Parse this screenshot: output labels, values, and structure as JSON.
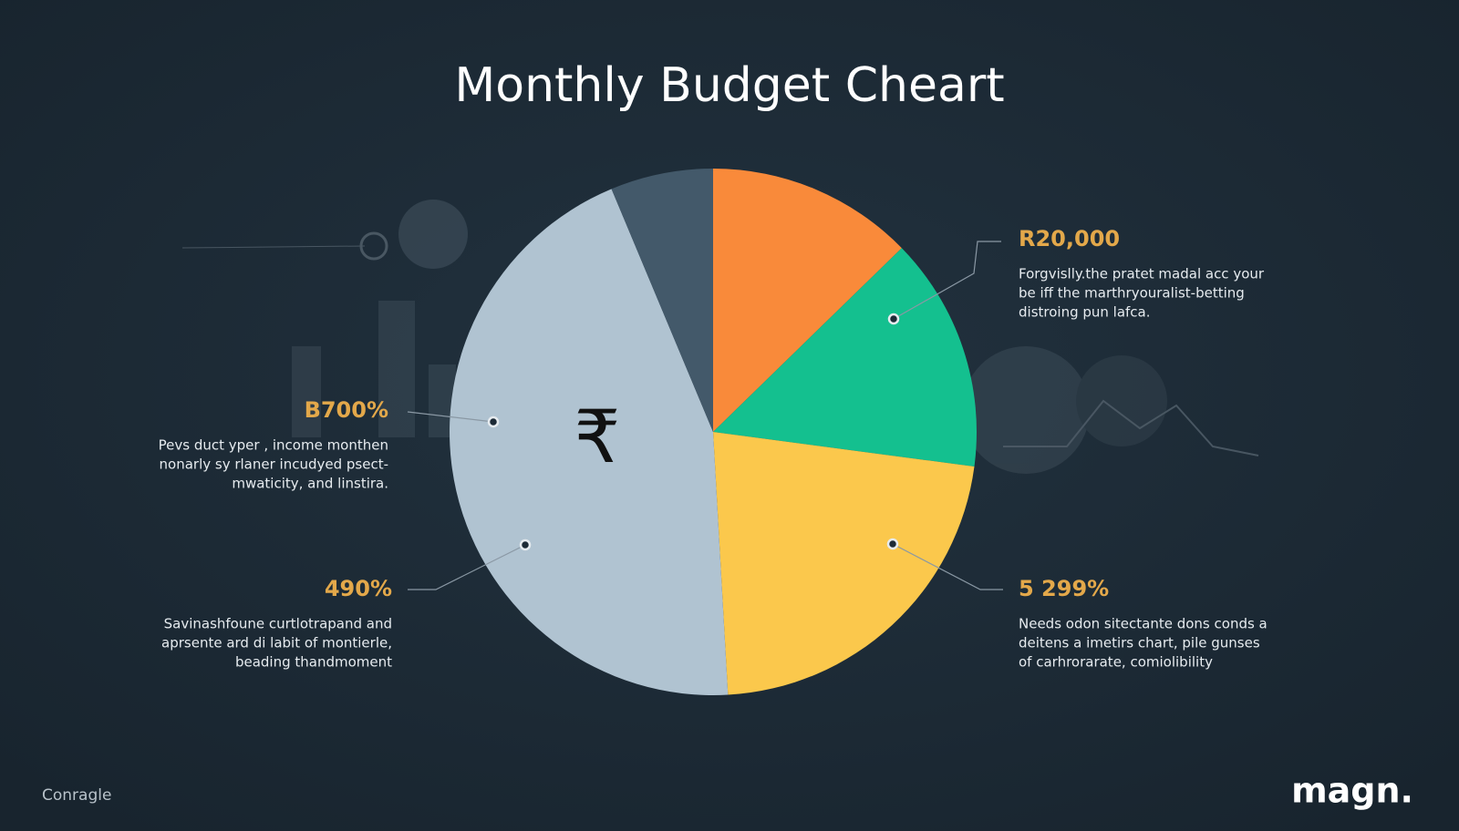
{
  "chart_data": {
    "type": "pie",
    "title": "Monthly Budget Cheart",
    "values": [
      12.7,
      14.4,
      22.0,
      44.6,
      6.3
    ],
    "colors": [
      "#f98a3a",
      "#14c08f",
      "#fbc84c",
      "#b0c3d1",
      "#43596a"
    ],
    "center_symbol": "₹",
    "annotations": [
      {
        "label": "R20,000",
        "text": [
          "Forgvislly.the pratet madal acc your",
          "be iff the marthryouralist-betting",
          "distroing pun lafca."
        ]
      },
      {
        "label": "B700%",
        "text": [
          "Pevs duct yper , income monthen",
          "nonarly sy rlaner incudyed psect-",
          "mwaticity, and linstira."
        ]
      },
      {
        "label": "490%",
        "text": [
          "Savinashfoune curtlotrapand and",
          "aprsente ard di labit of montierle,",
          "beading thandmoment"
        ]
      },
      {
        "label": "5 299%",
        "text": [
          "Needs odon sitectante dons conds a",
          "deitens a imetirs chart, pile gunses",
          "of carhrorarate, comiolibility"
        ]
      }
    ]
  },
  "footer": {
    "left": "Conragle",
    "logo": "magn."
  }
}
